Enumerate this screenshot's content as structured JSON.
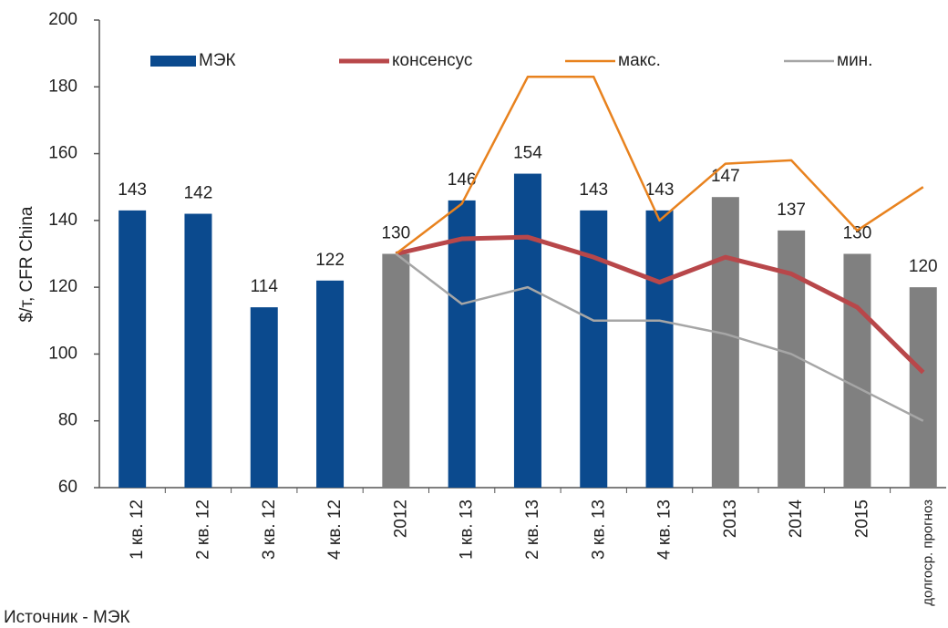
{
  "chart_data": {
    "type": "bar",
    "y_label": "$/т, CFR China",
    "source": "Источник - МЭК",
    "categories": [
      "1 кв. 12",
      "2 кв. 12",
      "3 кв. 12",
      "4 кв. 12",
      "2012",
      "1 кв. 13",
      "2 кв. 13",
      "3 кв. 13",
      "4 кв. 13",
      "2013",
      "2014",
      "2015",
      "долгоср. прогноз"
    ],
    "series": [
      {
        "name": "МЭК",
        "type": "bar",
        "color": "#0b4a8e",
        "colors": [
          "#0b4a8e",
          "#0b4a8e",
          "#0b4a8e",
          "#0b4a8e",
          "#808080",
          "#0b4a8e",
          "#0b4a8e",
          "#0b4a8e",
          "#0b4a8e",
          "#808080",
          "#808080",
          "#808080",
          "#808080"
        ],
        "values": [
          143,
          142,
          114,
          122,
          130,
          146,
          154,
          143,
          143,
          147,
          137,
          130,
          120
        ]
      },
      {
        "name": "консенсус",
        "type": "line",
        "color": "#b8474a",
        "width": 5,
        "values": [
          null,
          null,
          null,
          null,
          130,
          134.5,
          135,
          129,
          121.5,
          129,
          124,
          114,
          94.5
        ]
      },
      {
        "name": "макс.",
        "type": "line",
        "color": "#e8821e",
        "width": 2.5,
        "values": [
          null,
          null,
          null,
          null,
          130,
          145,
          183,
          183,
          140,
          157,
          158,
          137,
          150
        ]
      },
      {
        "name": "мин.",
        "type": "line",
        "color": "#a6a6a6",
        "width": 2.5,
        "values": [
          null,
          null,
          null,
          null,
          130,
          115,
          120,
          110,
          110,
          106,
          100,
          90,
          80
        ]
      }
    ],
    "ylim": [
      60,
      200
    ],
    "yticks": [
      60,
      80,
      100,
      120,
      140,
      160,
      180,
      200
    ],
    "grid": false,
    "legend": "top"
  }
}
